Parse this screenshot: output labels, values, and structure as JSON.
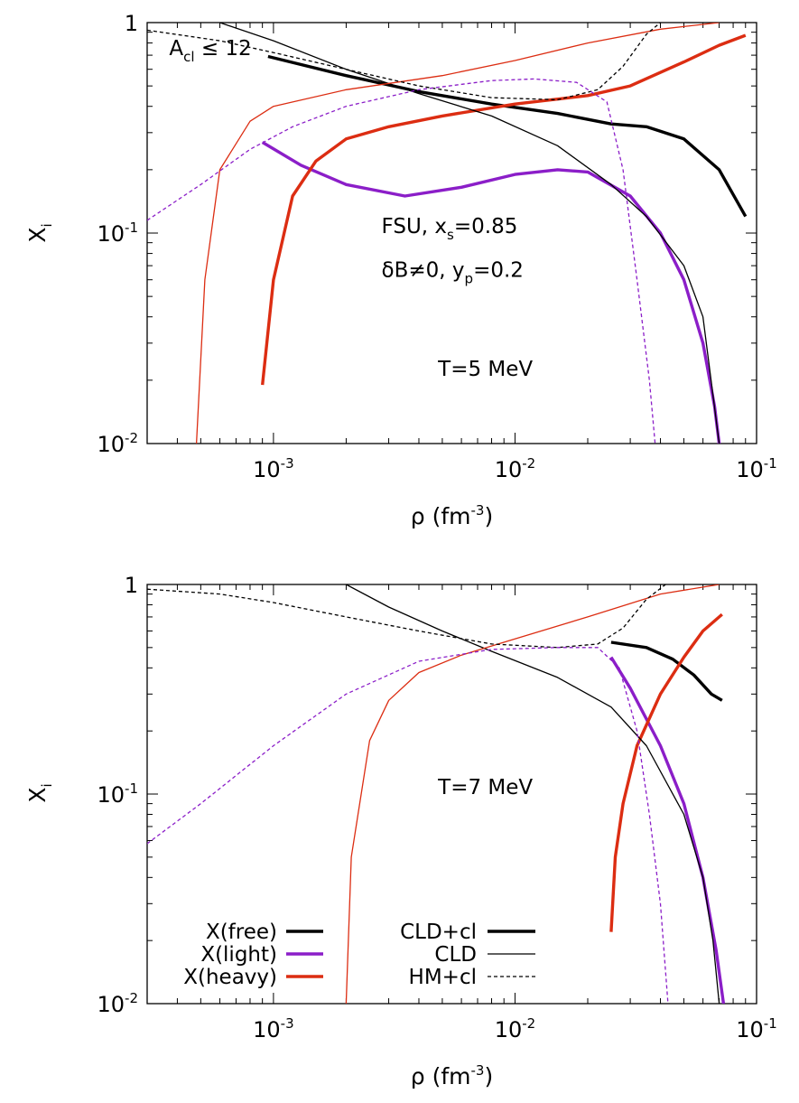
{
  "chart_data": [
    {
      "type": "line",
      "panel": "top",
      "xscale": "log",
      "yscale": "log",
      "xlim": [
        0.0003,
        0.1
      ],
      "ylim": [
        0.01,
        1
      ],
      "xlabel": {
        "base": "ρ (fm",
        "sup": "-3",
        "tail": ")"
      },
      "ylabel": {
        "base": "X",
        "sub": "i"
      },
      "xticks": [
        {
          "value": 0.001,
          "base": "10",
          "exp": "-3"
        },
        {
          "value": 0.01,
          "base": "10",
          "exp": "-2"
        },
        {
          "value": 0.1,
          "base": "10",
          "exp": "-1"
        }
      ],
      "yticks": [
        {
          "value": 0.01,
          "base": "10",
          "exp": "-2"
        },
        {
          "value": 0.1,
          "base": "10",
          "exp": "-1"
        },
        {
          "value": 1,
          "base": "1",
          "exp": ""
        }
      ],
      "annotations": [
        {
          "id": "acl",
          "base": "A",
          "sub": "cl",
          "tail": " ≤ 12",
          "x": 0.00037,
          "y": 0.7
        },
        {
          "id": "model",
          "base": "FSU, x",
          "sub": "s",
          "tail": "=0.85",
          "x": 0.0028,
          "y": 0.1
        },
        {
          "id": "deltab",
          "base": "δB≠0, y",
          "sub": "p",
          "tail": "=0.2",
          "x": 0.0028,
          "y": 0.062
        },
        {
          "id": "temp",
          "base": "T=5 MeV",
          "sub": "",
          "tail": "",
          "x": 0.0048,
          "y": 0.021
        }
      ],
      "series": [
        {
          "component": "free",
          "model": "CLD+cl",
          "color": "#000000",
          "style": "thick",
          "points": [
            [
              0.00095,
              0.69
            ],
            [
              0.002,
              0.56
            ],
            [
              0.004,
              0.47
            ],
            [
              0.008,
              0.41
            ],
            [
              0.015,
              0.37
            ],
            [
              0.025,
              0.33
            ],
            [
              0.035,
              0.32
            ],
            [
              0.05,
              0.28
            ],
            [
              0.07,
              0.2
            ],
            [
              0.09,
              0.12
            ]
          ]
        },
        {
          "component": "light",
          "model": "CLD+cl",
          "color": "#8b1ec8",
          "style": "thick",
          "points": [
            [
              0.0009,
              0.27
            ],
            [
              0.0013,
              0.21
            ],
            [
              0.002,
              0.17
            ],
            [
              0.0035,
              0.15
            ],
            [
              0.006,
              0.165
            ],
            [
              0.01,
              0.19
            ],
            [
              0.015,
              0.2
            ],
            [
              0.02,
              0.195
            ],
            [
              0.03,
              0.15
            ],
            [
              0.04,
              0.1
            ],
            [
              0.05,
              0.06
            ],
            [
              0.06,
              0.03
            ],
            [
              0.067,
              0.015
            ],
            [
              0.07,
              0.01
            ]
          ]
        },
        {
          "component": "heavy",
          "model": "CLD+cl",
          "color": "#dc2d12",
          "style": "thick",
          "points": [
            [
              0.0009,
              0.019
            ],
            [
              0.001,
              0.06
            ],
            [
              0.0012,
              0.15
            ],
            [
              0.0015,
              0.22
            ],
            [
              0.002,
              0.28
            ],
            [
              0.003,
              0.32
            ],
            [
              0.005,
              0.36
            ],
            [
              0.01,
              0.41
            ],
            [
              0.02,
              0.45
            ],
            [
              0.03,
              0.5
            ],
            [
              0.05,
              0.65
            ],
            [
              0.07,
              0.78
            ],
            [
              0.09,
              0.87
            ]
          ]
        },
        {
          "component": "free",
          "model": "CLD",
          "color": "#000000",
          "style": "thin",
          "points": [
            [
              0.0006,
              1.0
            ],
            [
              0.001,
              0.82
            ],
            [
              0.002,
              0.6
            ],
            [
              0.004,
              0.46
            ],
            [
              0.008,
              0.36
            ],
            [
              0.015,
              0.26
            ],
            [
              0.025,
              0.17
            ],
            [
              0.035,
              0.12
            ],
            [
              0.05,
              0.07
            ],
            [
              0.06,
              0.04
            ],
            [
              0.07,
              0.01
            ]
          ]
        },
        {
          "component": "heavy",
          "model": "CLD",
          "color": "#dc2d12",
          "style": "thin",
          "points": [
            [
              0.00048,
              0.01
            ],
            [
              0.00052,
              0.06
            ],
            [
              0.0006,
              0.2
            ],
            [
              0.0008,
              0.34
            ],
            [
              0.001,
              0.4
            ],
            [
              0.002,
              0.48
            ],
            [
              0.005,
              0.56
            ],
            [
              0.01,
              0.66
            ],
            [
              0.02,
              0.8
            ],
            [
              0.04,
              0.93
            ],
            [
              0.07,
              1.0
            ]
          ]
        },
        {
          "component": "free",
          "model": "HM+cl",
          "color": "#000000",
          "style": "dashed",
          "points": [
            [
              0.0003,
              0.92
            ],
            [
              0.0006,
              0.82
            ],
            [
              0.001,
              0.72
            ],
            [
              0.002,
              0.6
            ],
            [
              0.004,
              0.5
            ],
            [
              0.008,
              0.44
            ],
            [
              0.015,
              0.43
            ],
            [
              0.022,
              0.48
            ],
            [
              0.028,
              0.62
            ],
            [
              0.035,
              0.88
            ],
            [
              0.04,
              1.0
            ]
          ]
        },
        {
          "component": "light",
          "model": "HM+cl",
          "color": "#8b1ec8",
          "style": "dashed",
          "points": [
            [
              0.0003,
              0.115
            ],
            [
              0.0005,
              0.17
            ],
            [
              0.0008,
              0.25
            ],
            [
              0.0012,
              0.32
            ],
            [
              0.002,
              0.4
            ],
            [
              0.004,
              0.48
            ],
            [
              0.008,
              0.53
            ],
            [
              0.012,
              0.54
            ],
            [
              0.018,
              0.52
            ],
            [
              0.024,
              0.42
            ],
            [
              0.028,
              0.2
            ],
            [
              0.032,
              0.06
            ],
            [
              0.036,
              0.02
            ],
            [
              0.038,
              0.01
            ]
          ]
        }
      ]
    },
    {
      "type": "line",
      "panel": "bottom",
      "xscale": "log",
      "yscale": "log",
      "xlim": [
        0.0003,
        0.1
      ],
      "ylim": [
        0.01,
        1
      ],
      "xlabel": {
        "base": "ρ (fm",
        "sup": "-3",
        "tail": ")"
      },
      "ylabel": {
        "base": "X",
        "sub": "i"
      },
      "xticks": [
        {
          "value": 0.001,
          "base": "10",
          "exp": "-3"
        },
        {
          "value": 0.01,
          "base": "10",
          "exp": "-2"
        },
        {
          "value": 0.1,
          "base": "10",
          "exp": "-1"
        }
      ],
      "yticks": [
        {
          "value": 0.01,
          "base": "10",
          "exp": "-2"
        },
        {
          "value": 0.1,
          "base": "10",
          "exp": "-1"
        },
        {
          "value": 1,
          "base": "1",
          "exp": ""
        }
      ],
      "annotations": [
        {
          "id": "temp",
          "base": "T=7 MeV",
          "sub": "",
          "tail": "",
          "x": 0.0048,
          "y": 0.1
        }
      ],
      "legend": {
        "components": [
          {
            "label": "X(free)",
            "color": "#000000"
          },
          {
            "label": "X(light)",
            "color": "#8b1ec8"
          },
          {
            "label": "X(heavy)",
            "color": "#dc2d12"
          }
        ],
        "styles": [
          {
            "label": "CLD+cl",
            "style": "thick"
          },
          {
            "label": "CLD",
            "style": "thin"
          },
          {
            "label": "HM+cl",
            "style": "dashed"
          }
        ]
      },
      "series": [
        {
          "component": "free",
          "model": "CLD+cl",
          "color": "#000000",
          "style": "thick",
          "points": [
            [
              0.025,
              0.53
            ],
            [
              0.035,
              0.5
            ],
            [
              0.045,
              0.44
            ],
            [
              0.055,
              0.37
            ],
            [
              0.065,
              0.3
            ],
            [
              0.072,
              0.28
            ]
          ]
        },
        {
          "component": "light",
          "model": "CLD+cl",
          "color": "#8b1ec8",
          "style": "thick",
          "points": [
            [
              0.025,
              0.45
            ],
            [
              0.03,
              0.32
            ],
            [
              0.04,
              0.17
            ],
            [
              0.05,
              0.09
            ],
            [
              0.06,
              0.04
            ],
            [
              0.068,
              0.018
            ],
            [
              0.073,
              0.01
            ]
          ]
        },
        {
          "component": "heavy",
          "model": "CLD+cl",
          "color": "#dc2d12",
          "style": "thick",
          "points": [
            [
              0.025,
              0.022
            ],
            [
              0.026,
              0.05
            ],
            [
              0.028,
              0.09
            ],
            [
              0.032,
              0.17
            ],
            [
              0.04,
              0.3
            ],
            [
              0.05,
              0.45
            ],
            [
              0.06,
              0.6
            ],
            [
              0.072,
              0.72
            ]
          ]
        },
        {
          "component": "free",
          "model": "CLD",
          "color": "#000000",
          "style": "thin",
          "points": [
            [
              0.002,
              1.0
            ],
            [
              0.003,
              0.78
            ],
            [
              0.005,
              0.6
            ],
            [
              0.008,
              0.48
            ],
            [
              0.015,
              0.36
            ],
            [
              0.025,
              0.26
            ],
            [
              0.035,
              0.17
            ],
            [
              0.05,
              0.08
            ],
            [
              0.06,
              0.04
            ],
            [
              0.066,
              0.02
            ],
            [
              0.07,
              0.01
            ]
          ]
        },
        {
          "component": "heavy",
          "model": "CLD",
          "color": "#dc2d12",
          "style": "thin",
          "points": [
            [
              0.002,
              0.01
            ],
            [
              0.0021,
              0.05
            ],
            [
              0.0025,
              0.18
            ],
            [
              0.003,
              0.28
            ],
            [
              0.004,
              0.38
            ],
            [
              0.006,
              0.46
            ],
            [
              0.01,
              0.55
            ],
            [
              0.02,
              0.7
            ],
            [
              0.04,
              0.9
            ],
            [
              0.07,
              1.0
            ]
          ]
        },
        {
          "component": "free",
          "model": "HM+cl",
          "color": "#000000",
          "style": "dashed",
          "points": [
            [
              0.0003,
              0.95
            ],
            [
              0.0006,
              0.9
            ],
            [
              0.001,
              0.82
            ],
            [
              0.002,
              0.7
            ],
            [
              0.004,
              0.6
            ],
            [
              0.008,
              0.52
            ],
            [
              0.015,
              0.5
            ],
            [
              0.022,
              0.52
            ],
            [
              0.028,
              0.62
            ],
            [
              0.035,
              0.85
            ],
            [
              0.042,
              1.0
            ]
          ]
        },
        {
          "component": "light",
          "model": "HM+cl",
          "color": "#8b1ec8",
          "style": "dashed",
          "points": [
            [
              0.0003,
              0.058
            ],
            [
              0.0005,
              0.09
            ],
            [
              0.001,
              0.17
            ],
            [
              0.002,
              0.3
            ],
            [
              0.004,
              0.43
            ],
            [
              0.008,
              0.49
            ],
            [
              0.015,
              0.5
            ],
            [
              0.022,
              0.5
            ],
            [
              0.027,
              0.4
            ],
            [
              0.032,
              0.2
            ],
            [
              0.036,
              0.08
            ],
            [
              0.04,
              0.03
            ],
            [
              0.043,
              0.01
            ]
          ]
        }
      ]
    }
  ]
}
